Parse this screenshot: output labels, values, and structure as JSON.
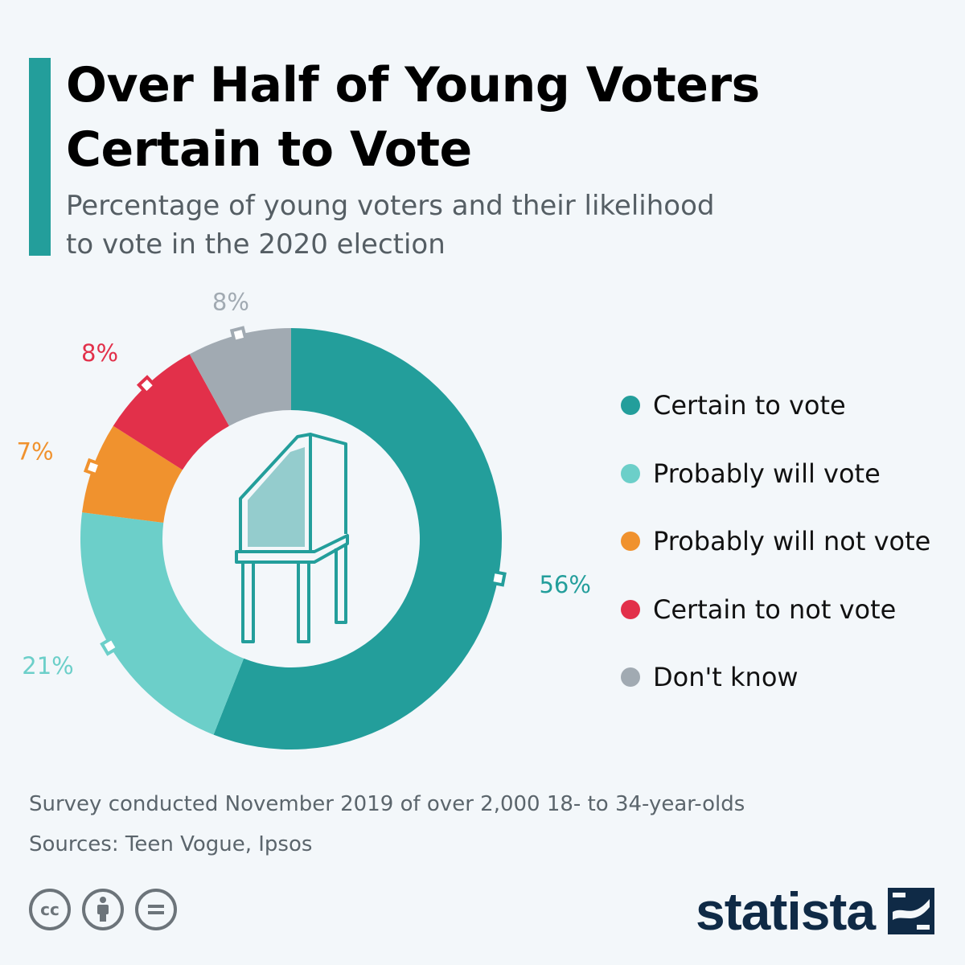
{
  "header": {
    "title_line1": "Over Half of Young Voters",
    "title_line2": "Certain to Vote",
    "subtitle_line1": "Percentage of young voters and their likelihood",
    "subtitle_line2": "to vote in the 2020 election"
  },
  "chart_data": {
    "type": "pie",
    "variant": "donut",
    "title": "Over Half of Young Voters Certain to Vote",
    "subtitle": "Percentage of young voters and their likelihood to vote in the 2020 election",
    "unit": "%",
    "categories": [
      "Certain to vote",
      "Probably will vote",
      "Probably will not vote",
      "Certain to not vote",
      "Don't know"
    ],
    "values": [
      56,
      21,
      7,
      8,
      8
    ],
    "labels": [
      "56%",
      "21%",
      "7%",
      "8%",
      "8%"
    ],
    "colors": [
      "#239e9b",
      "#6ccfc9",
      "#f0922e",
      "#e2304a",
      "#a1aab2"
    ],
    "legend_position": "right",
    "center_icon": "voting-booth-icon"
  },
  "legend": {
    "items": [
      {
        "label": "Certain to vote",
        "color": "#239e9b"
      },
      {
        "label": "Probably will vote",
        "color": "#6ccfc9"
      },
      {
        "label": "Probably will not vote",
        "color": "#f0922e"
      },
      {
        "label": "Certain to not vote",
        "color": "#e2304a"
      },
      {
        "label": "Don't know",
        "color": "#a1aab2"
      }
    ]
  },
  "footer": {
    "note": "Survey conducted November 2019 of over 2,000 18- to 34-year-olds",
    "sources": "Sources: Teen Vogue, Ipsos",
    "brand": "statista",
    "license_icons": [
      "cc-icon",
      "attribution-icon",
      "no-derivatives-icon"
    ]
  },
  "colors": {
    "accent": "#239e9b",
    "background": "#f3f7fa",
    "brand": "#0f2a46"
  }
}
